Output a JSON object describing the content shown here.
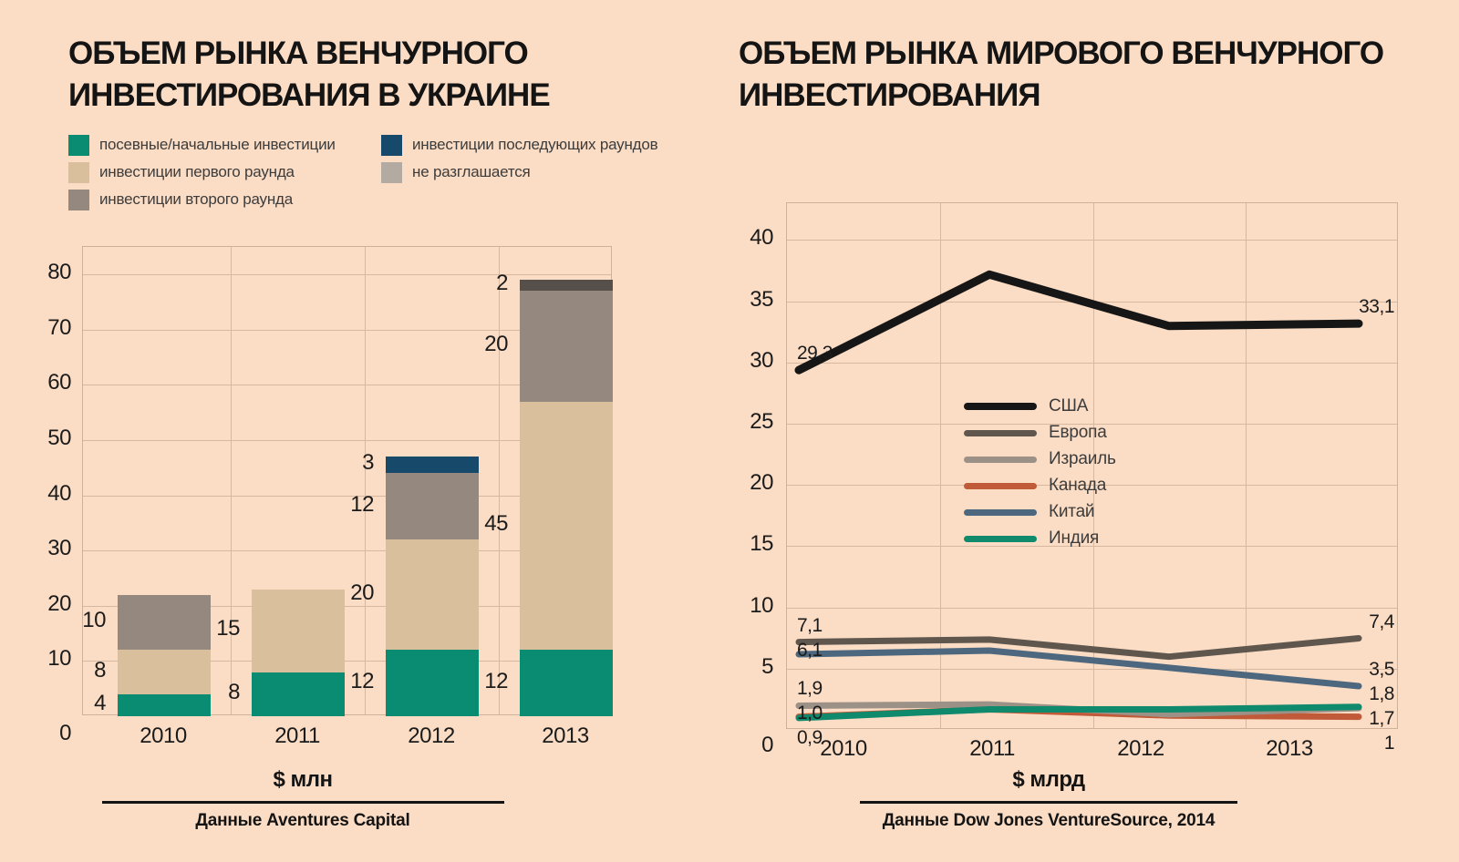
{
  "page": {
    "background": "#fbdcc4",
    "text_color": "#1b1b1b"
  },
  "chart_data": [
    {
      "type": "bar",
      "stacked": true,
      "title": "ОБЪЕМ РЫНКА ВЕНЧУРНОГО ИНВЕСТИРОВАНИЯ В УКРАИНЕ",
      "title_lines": [
        "ОБЪЕМ РЫНКА ВЕНЧУРНОГО",
        "ИНВЕСТИРОВАНИЯ В УКРАИНЕ"
      ],
      "unit_label": "$ млн",
      "source": "Данные Aventures Capital",
      "categories": [
        "2010",
        "2011",
        "2012",
        "2013"
      ],
      "ylim": [
        0,
        85
      ],
      "yticks": [
        0,
        10,
        20,
        30,
        40,
        50,
        60,
        70,
        80
      ],
      "grid": true,
      "legend_position": "top-left",
      "legend": [
        {
          "label": "посевные/начальные инвестиции",
          "color": "#0a8c72"
        },
        {
          "label": "инвестиции первого раунда",
          "color": "#d9bf9b"
        },
        {
          "label": "инвестиции второго раунда",
          "color": "#95887f"
        },
        {
          "label": "инвестиции последующих раундов",
          "color": "#17496b"
        },
        {
          "label": "не разглашается",
          "color": "#b3aaa2"
        }
      ],
      "series": [
        {
          "name": "посевные/начальные инвестиции",
          "color": "#0a8c72",
          "values": [
            4,
            8,
            12,
            12
          ]
        },
        {
          "name": "инвестиции первого раунда",
          "color": "#d9bf9b",
          "values": [
            8,
            15,
            20,
            45
          ]
        },
        {
          "name": "инвестиции второго раунда",
          "color": "#95887f",
          "values": [
            10,
            0,
            12,
            20
          ]
        },
        {
          "name": "инвестиции последующих раундов",
          "color": "#17496b",
          "values": [
            0,
            0,
            3,
            0
          ]
        },
        {
          "name": "не разглашается",
          "color": "#57504a",
          "values": [
            0,
            0,
            0,
            2
          ]
        }
      ]
    },
    {
      "type": "line",
      "title": "ОБЪЕМ РЫНКА МИРОВОГО ВЕНЧУРНОГО ИНВЕСТИРОВАНИЯ",
      "title_lines": [
        "ОБЪЕМ РЫНКА МИРОВОГО ВЕНЧУРНОГО",
        "ИНВЕСТИРОВАНИЯ"
      ],
      "unit_label": "$ млрд",
      "source": "Данные Dow Jones VentureSource, 2014",
      "x": [
        "2010",
        "2011",
        "2012",
        "2013"
      ],
      "ylim": [
        0,
        43
      ],
      "yticks": [
        0,
        5,
        10,
        15,
        20,
        25,
        30,
        35,
        40
      ],
      "grid": true,
      "legend_position": "inside-center",
      "series": [
        {
          "name": "США",
          "color": "#161616",
          "values": [
            29.3,
            37.1,
            32.9,
            33.1
          ],
          "first_label": "29,3",
          "last_label": "33,1"
        },
        {
          "name": "Европа",
          "color": "#5f564e",
          "values": [
            7.1,
            7.3,
            5.9,
            7.4
          ],
          "first_label": "7,1",
          "last_label": "7,4"
        },
        {
          "name": "Израиль",
          "color": "#9c9187",
          "values": [
            1.9,
            2.0,
            1.2,
            1.7
          ],
          "first_label": "1,9",
          "last_label": "1,7"
        },
        {
          "name": "Канада",
          "color": "#c05a38",
          "values": [
            1.0,
            1.6,
            1.1,
            1.0
          ],
          "first_label": "1,0",
          "last_label": "1"
        },
        {
          "name": "Китай",
          "color": "#4c677e",
          "values": [
            6.1,
            6.4,
            5.0,
            3.5
          ],
          "first_label": "6,1",
          "last_label": "3,5"
        },
        {
          "name": "Индия",
          "color": "#0f8a6d",
          "values": [
            0.9,
            1.6,
            1.6,
            1.8
          ],
          "first_label": "0,9",
          "last_label": "1,8"
        }
      ]
    }
  ]
}
